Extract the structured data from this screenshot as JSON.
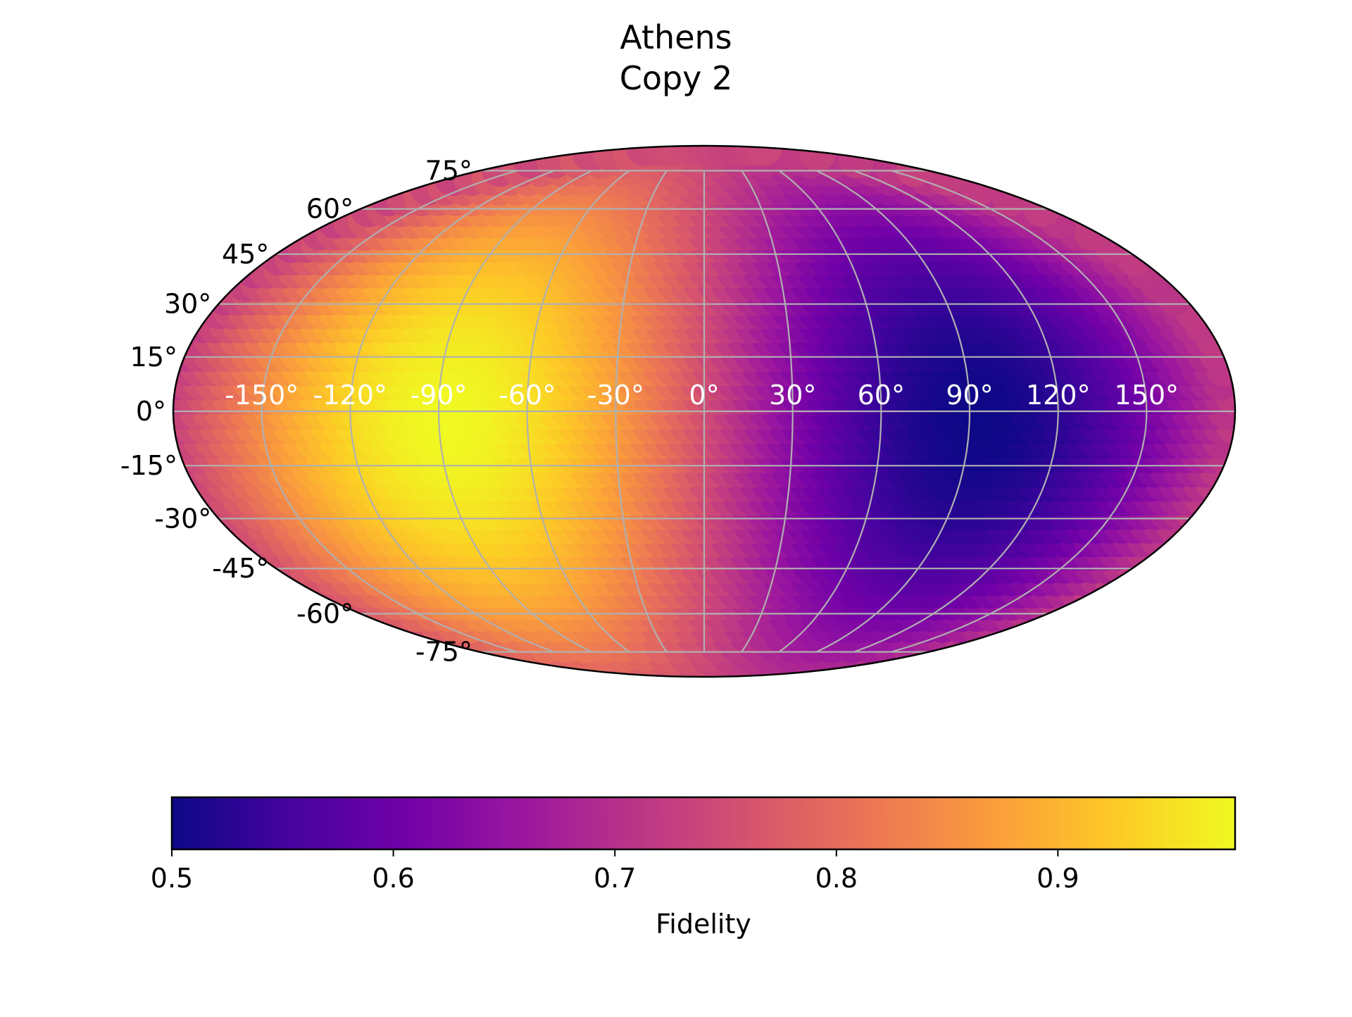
{
  "chart_data": {
    "type": "heatmap",
    "projection": "mollweide",
    "title": "Athens",
    "subtitle": "Copy 2",
    "colormap": "plasma",
    "colormap_stops": [
      "#0d0887",
      "#46039f",
      "#7201a8",
      "#9c179e",
      "#bd3786",
      "#d8576b",
      "#ed7953",
      "#fb9f3a",
      "#fdca26",
      "#f0f921"
    ],
    "color_range": [
      0.5,
      0.98
    ],
    "colorbar": {
      "label": "Fidelity",
      "ticks": [
        0.5,
        0.6,
        0.7,
        0.8,
        0.9
      ],
      "tick_labels": [
        "0.5",
        "0.6",
        "0.7",
        "0.8",
        "0.9"
      ],
      "placement": "bottom"
    },
    "longitude_labels": [
      "-150°",
      "-120°",
      "-90°",
      "-60°",
      "-30°",
      "0°",
      "30°",
      "60°",
      "90°",
      "120°",
      "150°"
    ],
    "longitude_ticks": [
      -150,
      -120,
      -90,
      -60,
      -30,
      0,
      30,
      60,
      90,
      120,
      150
    ],
    "latitude_labels": [
      "75°",
      "60°",
      "45°",
      "30°",
      "15°",
      "0°",
      "-15°",
      "-30°",
      "-45°",
      "-60°",
      "-75°"
    ],
    "latitude_ticks": [
      75,
      60,
      45,
      30,
      15,
      0,
      -15,
      -30,
      -45,
      -60,
      -75
    ],
    "grid": true,
    "field": {
      "description_of_values": "fidelity vs longitude/latitude",
      "max_fidelity": 0.98,
      "max_location": [
        -75,
        -10
      ],
      "min_fidelity": 0.5,
      "min_location": [
        95,
        0
      ]
    }
  }
}
